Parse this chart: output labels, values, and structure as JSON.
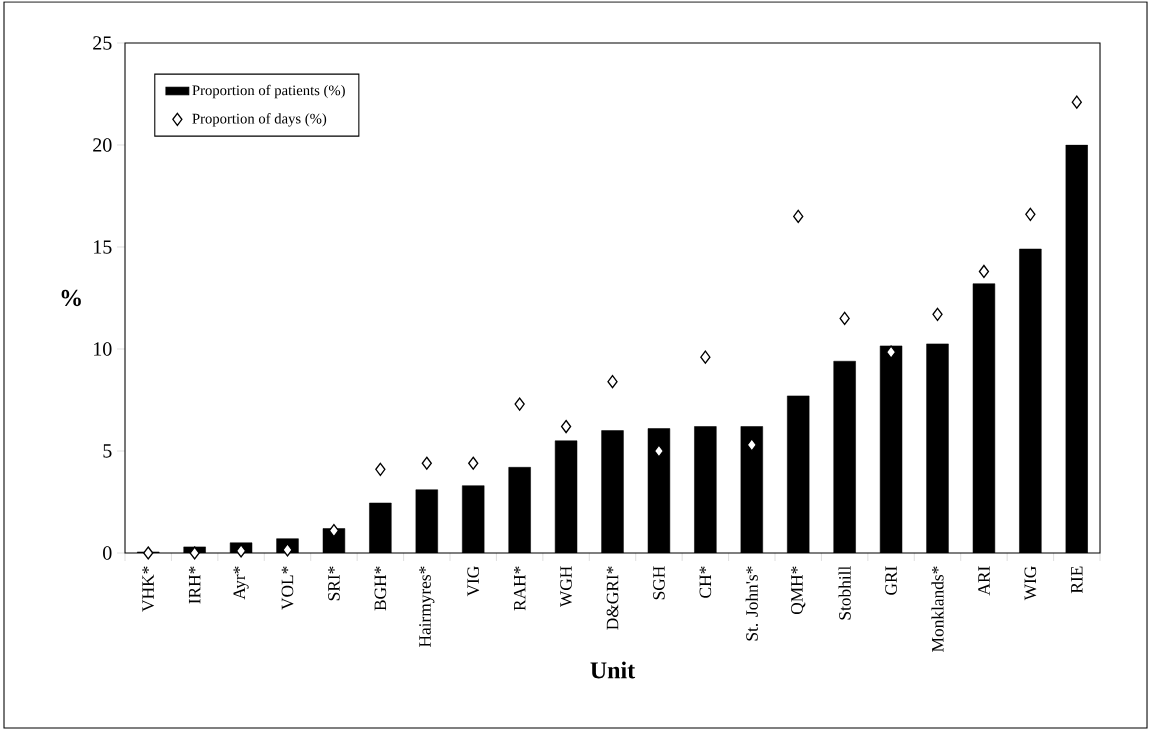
{
  "chart_data": {
    "type": "bar",
    "xlabel": "Unit",
    "ylabel": "%",
    "categories": [
      "VHK*",
      "IRH*",
      "Ayr*",
      "VOL*",
      "SRI*",
      "BGH*",
      "Hairmyres*",
      "VIG",
      "RAH*",
      "WGH",
      "D&GRI*",
      "SGH",
      "CH*",
      "St. John's*",
      "QMH*",
      "Stobhill",
      "GRI",
      "Monklands*",
      "ARI",
      "WIG",
      "RIE"
    ],
    "series": [
      {
        "name": "Proportion of patients (%)",
        "color": "#000000",
        "values": [
          0.05,
          0.3,
          0.5,
          0.7,
          1.2,
          2.45,
          3.1,
          3.3,
          4.2,
          5.5,
          6.0,
          6.1,
          6.2,
          6.2,
          7.7,
          9.4,
          10.15,
          10.25,
          13.2,
          14.9,
          20.0
        ]
      },
      {
        "name": "Proportion of days (%)",
        "type": "scatter",
        "color": "#000000",
        "marker": "diamond",
        "values": [
          0.0,
          0.0,
          0.1,
          0.15,
          1.1,
          4.1,
          4.4,
          4.4,
          7.3,
          6.2,
          8.4,
          5.0,
          9.6,
          5.3,
          16.5,
          11.5,
          9.85,
          11.7,
          13.8,
          16.6,
          22.1
        ]
      }
    ],
    "ylim": [
      0,
      25
    ],
    "yticks": [
      0,
      5,
      10,
      15,
      20,
      25
    ],
    "legend": "top left",
    "grid": false
  }
}
